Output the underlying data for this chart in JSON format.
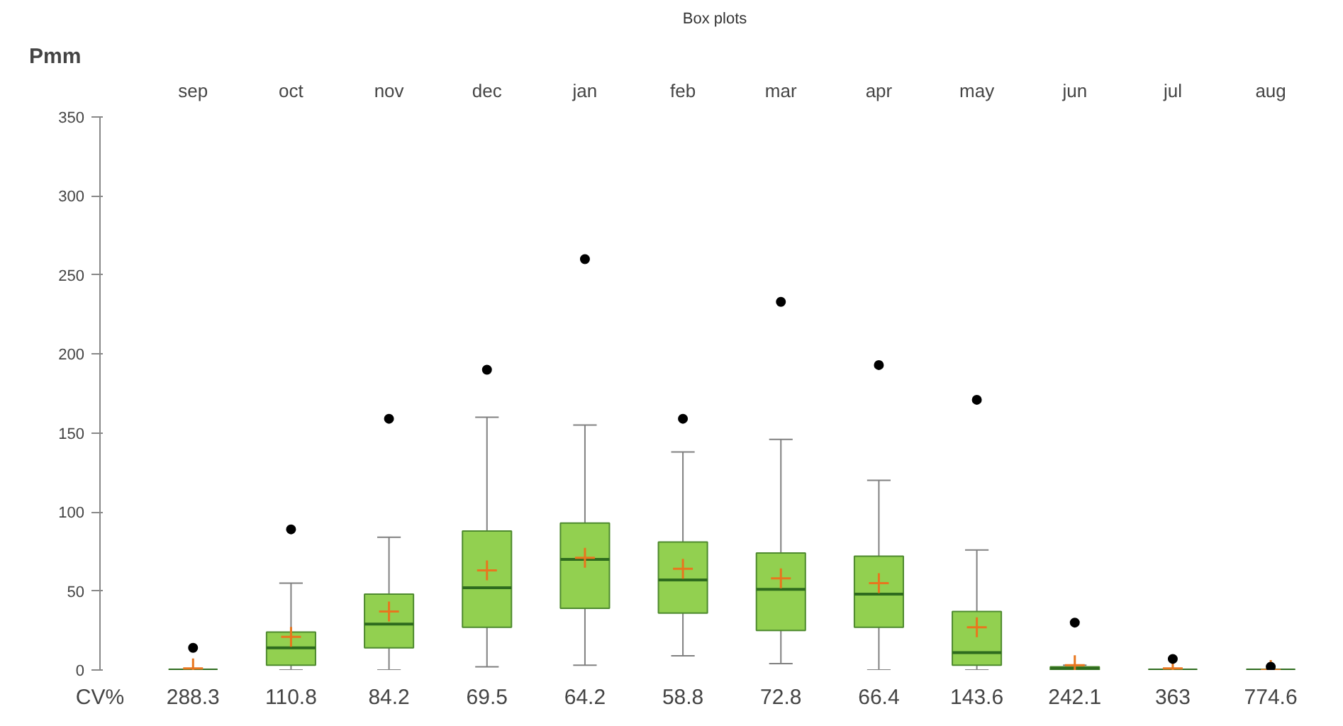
{
  "chart_data": {
    "type": "box",
    "title": "Box plots",
    "ylabel": "Pmm",
    "categories": [
      "sep",
      "oct",
      "nov",
      "dec",
      "jan",
      "feb",
      "mar",
      "apr",
      "may",
      "jun",
      "jul",
      "aug"
    ],
    "boxes": [
      {
        "low": 0,
        "q1": 0,
        "median": 0,
        "q3": 0,
        "high": 0,
        "mean": 1,
        "outliers": [
          14
        ]
      },
      {
        "low": 0,
        "q1": 3,
        "median": 14,
        "q3": 24,
        "high": 55,
        "mean": 21,
        "outliers": [
          89
        ]
      },
      {
        "low": 0,
        "q1": 14,
        "median": 29,
        "q3": 48,
        "high": 84,
        "mean": 37,
        "outliers": [
          159
        ]
      },
      {
        "low": 2,
        "q1": 27,
        "median": 52,
        "q3": 88,
        "high": 160,
        "mean": 63,
        "outliers": [
          190
        ]
      },
      {
        "low": 3,
        "q1": 39,
        "median": 70,
        "q3": 93,
        "high": 155,
        "mean": 71,
        "outliers": [
          260
        ]
      },
      {
        "low": 9,
        "q1": 36,
        "median": 57,
        "q3": 81,
        "high": 138,
        "mean": 64,
        "outliers": [
          159
        ]
      },
      {
        "low": 4,
        "q1": 25,
        "median": 51,
        "q3": 74,
        "high": 146,
        "mean": 58,
        "outliers": [
          233
        ]
      },
      {
        "low": 0,
        "q1": 27,
        "median": 48,
        "q3": 72,
        "high": 120,
        "mean": 55,
        "outliers": [
          193
        ]
      },
      {
        "low": 0,
        "q1": 3,
        "median": 11,
        "q3": 37,
        "high": 76,
        "mean": 27,
        "outliers": [
          171
        ]
      },
      {
        "low": 0,
        "q1": 0,
        "median": 1,
        "q3": 2,
        "high": 3,
        "mean": 3,
        "outliers": [
          30
        ]
      },
      {
        "low": 0,
        "q1": 0,
        "median": 0,
        "q3": 0,
        "high": 0,
        "mean": 1,
        "outliers": [
          7
        ]
      },
      {
        "low": 0,
        "q1": 0,
        "median": 0,
        "q3": 0,
        "high": 0,
        "mean": 0,
        "outliers": [
          2
        ]
      }
    ],
    "color": "#92d050",
    "ylim": [
      0,
      350
    ],
    "yticks": [
      0,
      50,
      100,
      150,
      200,
      250,
      300,
      350
    ],
    "grid": false,
    "annotations": [
      "CV%",
      "288.3",
      "110.8",
      "84.2",
      "69.5",
      "64.2",
      "58.8",
      "72.8",
      "66.4",
      "143.6",
      "242.1",
      "363",
      "774.6"
    ]
  }
}
